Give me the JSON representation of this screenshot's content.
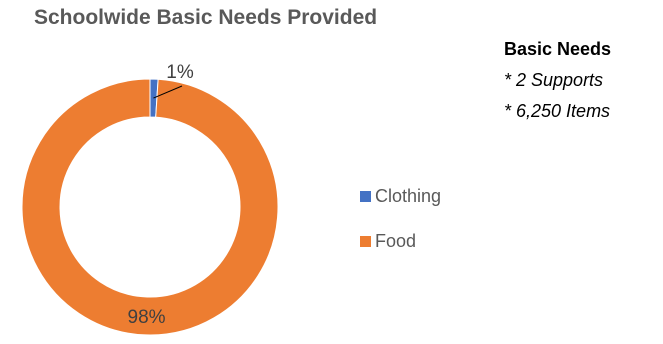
{
  "chart_data": {
    "type": "pie",
    "title": "Schoolwide Basic Needs Provided",
    "slices": [
      {
        "label": "Clothing",
        "value": 1,
        "display": "1%",
        "color": "#4472C4"
      },
      {
        "label": "Food",
        "value": 98,
        "display": "98%",
        "color": "#ED7D31"
      }
    ],
    "legend_position": "right"
  },
  "notes": {
    "heading": "Basic Needs",
    "lines": [
      "* 2 Supports",
      "* 6,250 Items"
    ]
  }
}
